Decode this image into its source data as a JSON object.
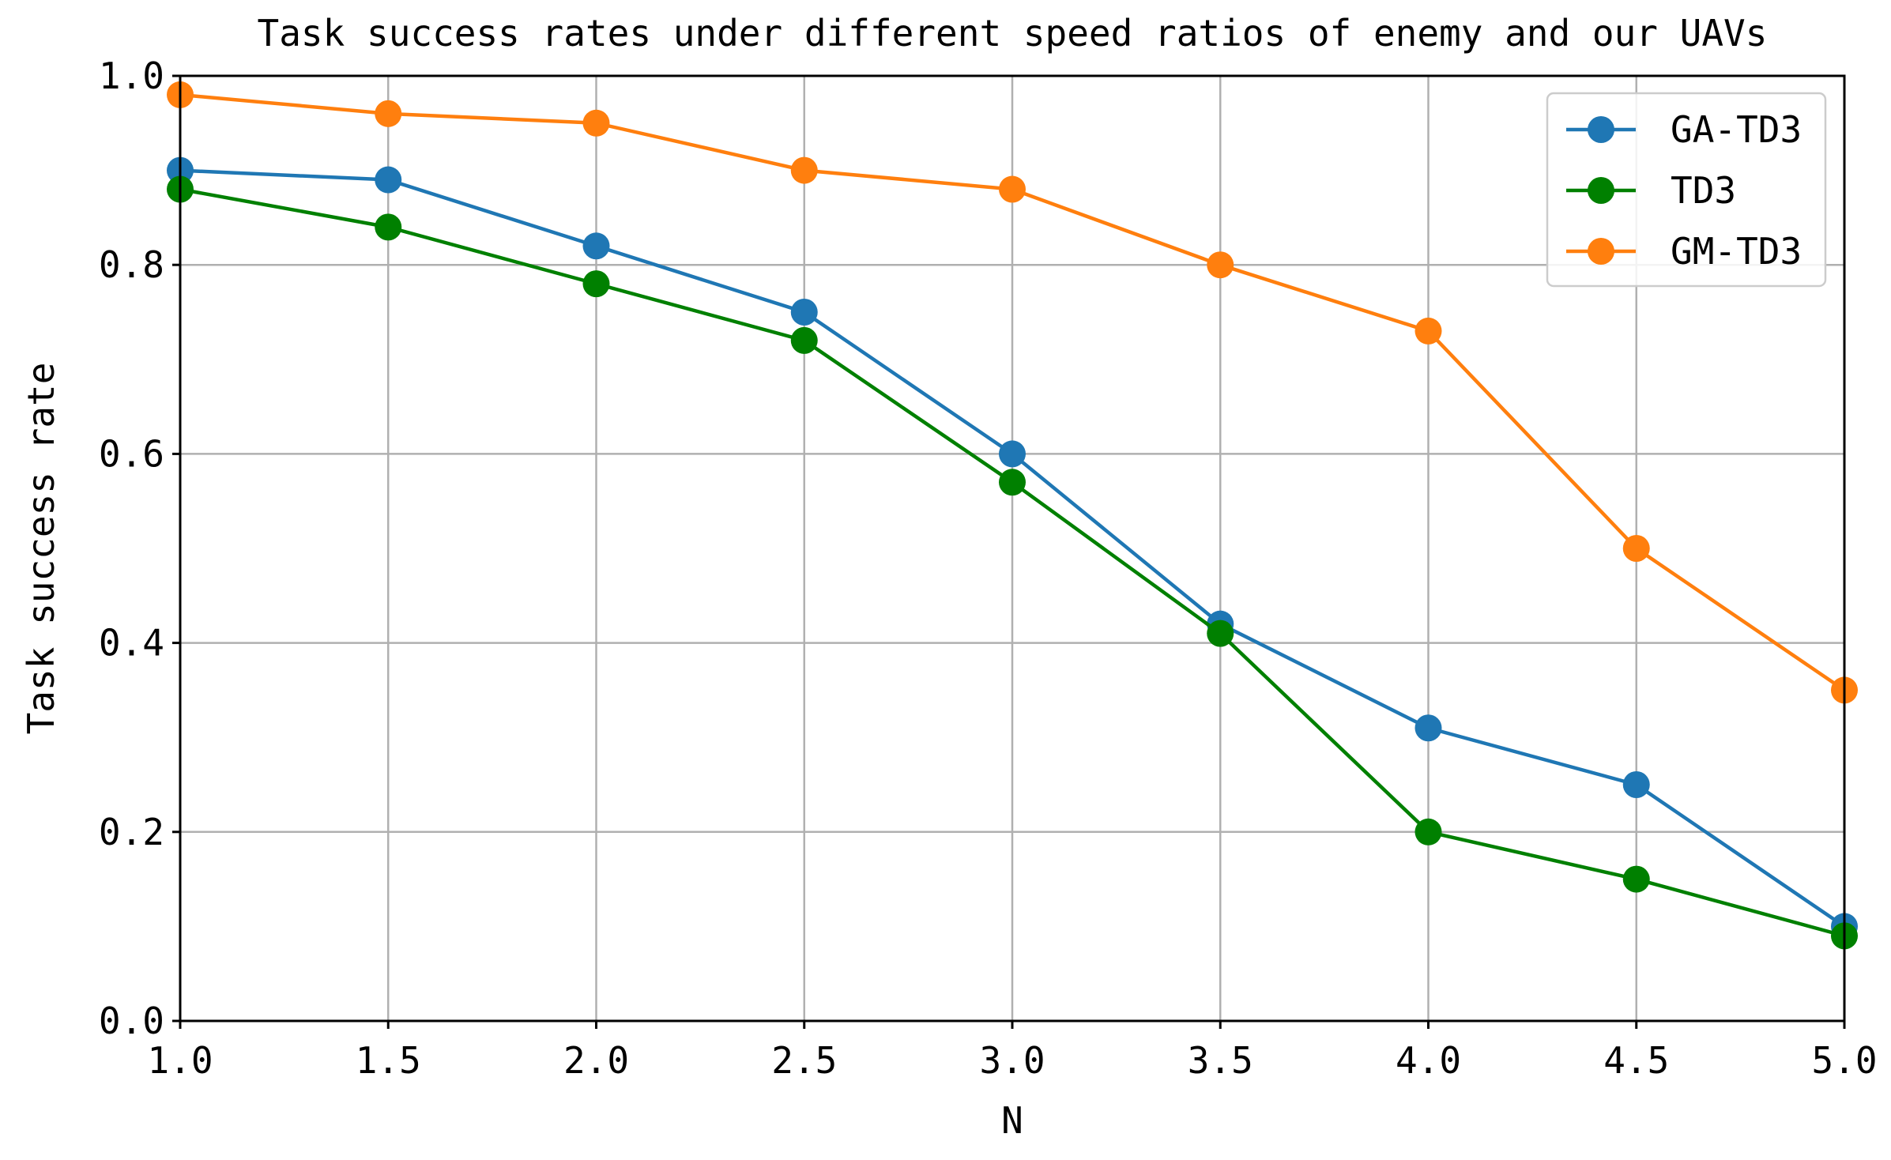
{
  "chart_data": {
    "type": "line",
    "title": "Task success rates under different speed ratios of enemy and our UAVs",
    "xlabel": "N",
    "ylabel": "Task success rate",
    "x": [
      1.0,
      1.5,
      2.0,
      2.5,
      3.0,
      3.5,
      4.0,
      4.5,
      5.0
    ],
    "xlim": [
      1.0,
      5.0
    ],
    "ylim": [
      0.0,
      1.0
    ],
    "xticks": [
      "1.0",
      "1.5",
      "2.0",
      "2.5",
      "3.0",
      "3.5",
      "4.0",
      "4.5",
      "5.0"
    ],
    "yticks": [
      "0.0",
      "0.2",
      "0.4",
      "0.6",
      "0.8",
      "1.0"
    ],
    "grid": true,
    "legend_position": "top-right",
    "series": [
      {
        "name": "GA-TD3",
        "color": "#1f77b4",
        "values": [
          0.9,
          0.89,
          0.82,
          0.75,
          0.6,
          0.42,
          0.31,
          0.25,
          0.1
        ]
      },
      {
        "name": "TD3",
        "color": "#008000",
        "values": [
          0.88,
          0.84,
          0.78,
          0.72,
          0.57,
          0.41,
          0.2,
          0.15,
          0.09
        ]
      },
      {
        "name": "GM-TD3",
        "color": "#ff7f0e",
        "values": [
          0.98,
          0.96,
          0.95,
          0.9,
          0.88,
          0.8,
          0.73,
          0.5,
          0.35
        ]
      }
    ]
  }
}
